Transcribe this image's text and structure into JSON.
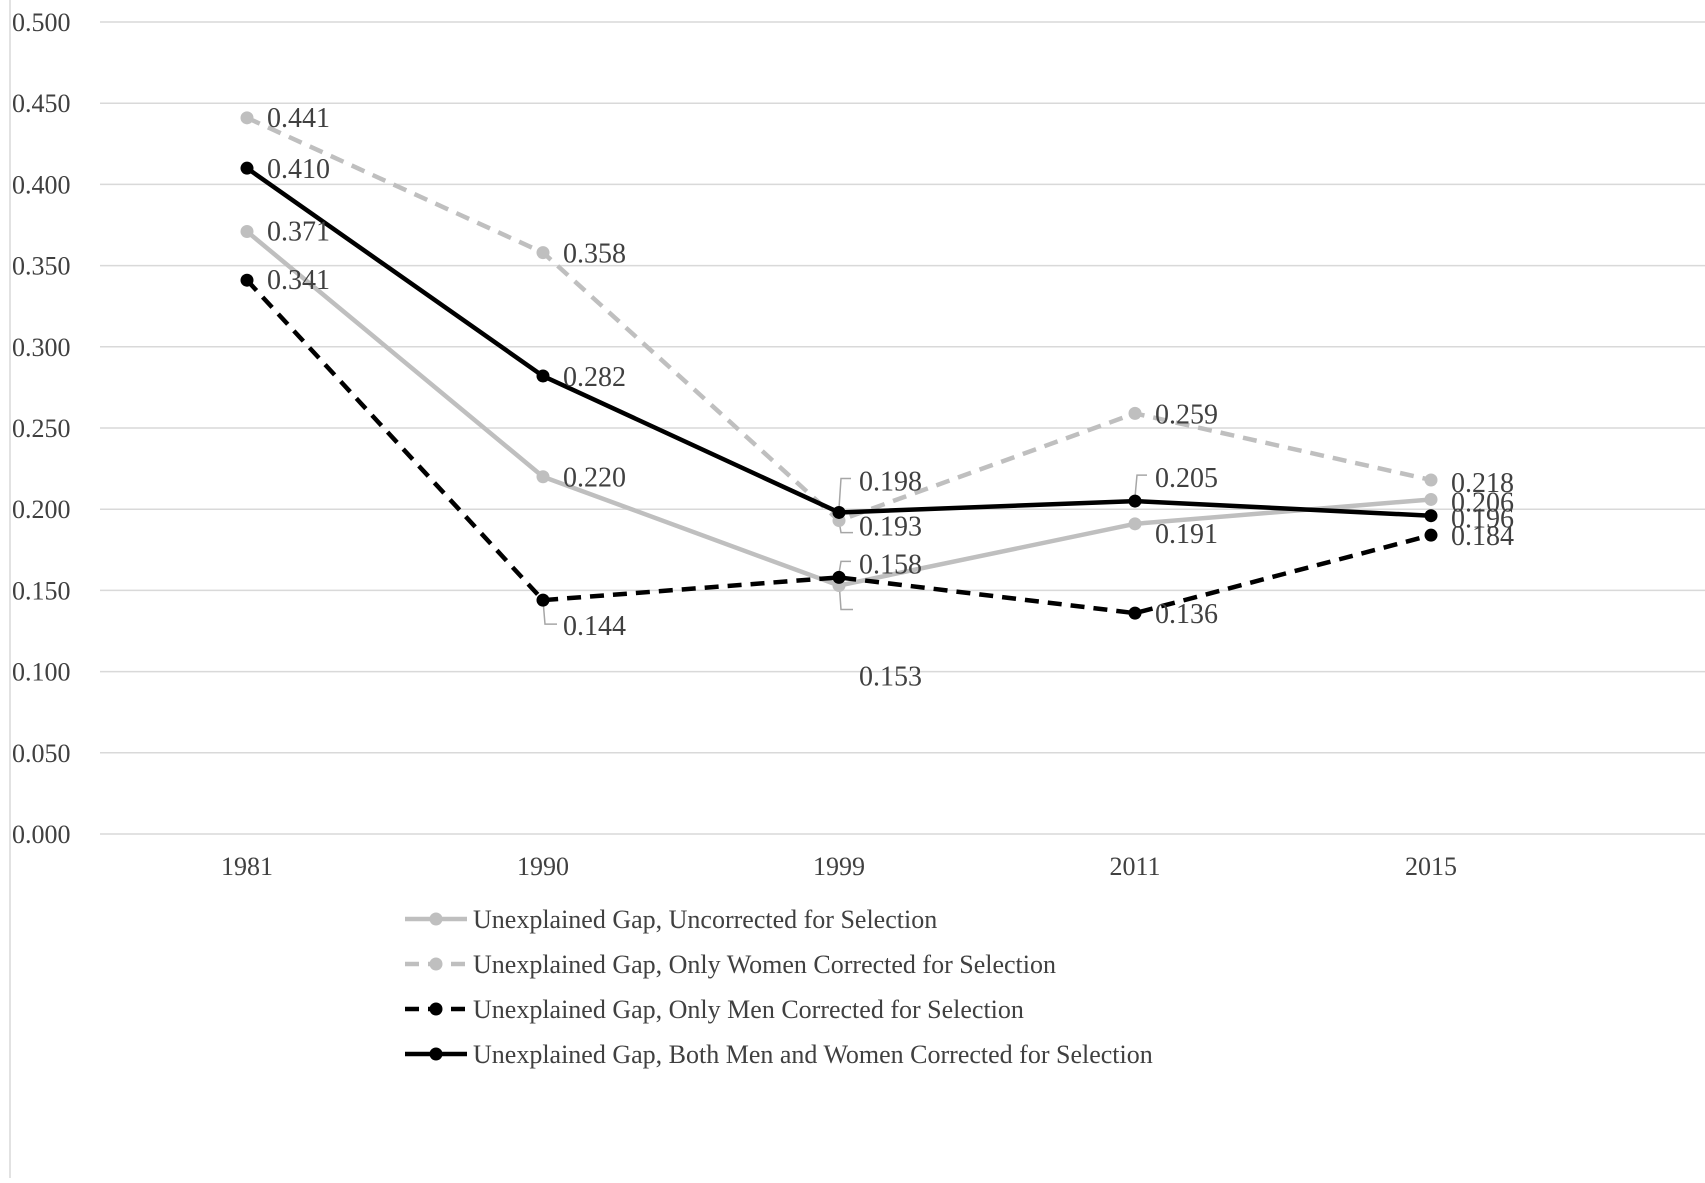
{
  "chart_data": {
    "type": "line",
    "title": "",
    "xlabel": "",
    "ylabel": "",
    "categories": [
      "1981",
      "1990",
      "1999",
      "2011",
      "2015"
    ],
    "ylim": [
      0,
      0.5
    ],
    "yticks": [
      "0.000",
      "0.050",
      "0.100",
      "0.150",
      "0.200",
      "0.250",
      "0.300",
      "0.350",
      "0.400",
      "0.450",
      "0.500"
    ],
    "grid": "horizontal",
    "legend_position": "bottom",
    "series": [
      {
        "name": "Unexplained Gap, Uncorrected for Selection",
        "values": [
          0.371,
          0.22,
          0.153,
          0.191,
          0.206
        ],
        "labels": [
          "0.371",
          "0.220",
          "0.153",
          "0.191",
          "0.206"
        ],
        "color": "#bfbfbf",
        "dashed": false
      },
      {
        "name": "Unexplained Gap, Only Women Corrected for Selection",
        "values": [
          0.441,
          0.358,
          0.193,
          0.259,
          0.218
        ],
        "labels": [
          "0.441",
          "0.358",
          "0.193",
          "0.259",
          "0.218"
        ],
        "color": "#bfbfbf",
        "dashed": true
      },
      {
        "name": "Unexplained Gap, Only Men Corrected for Selection",
        "values": [
          0.341,
          0.144,
          0.158,
          0.136,
          0.184
        ],
        "labels": [
          "0.341",
          "0.144",
          "0.158",
          "0.136",
          "0.184"
        ],
        "color": "#000000",
        "dashed": true
      },
      {
        "name": "Unexplained Gap, Both Men and Women Corrected for Selection",
        "values": [
          0.41,
          0.282,
          0.198,
          0.205,
          0.196
        ],
        "labels": [
          "0.410",
          "0.282",
          "0.198",
          "0.205",
          "0.196"
        ],
        "color": "#000000",
        "dashed": false
      }
    ]
  }
}
